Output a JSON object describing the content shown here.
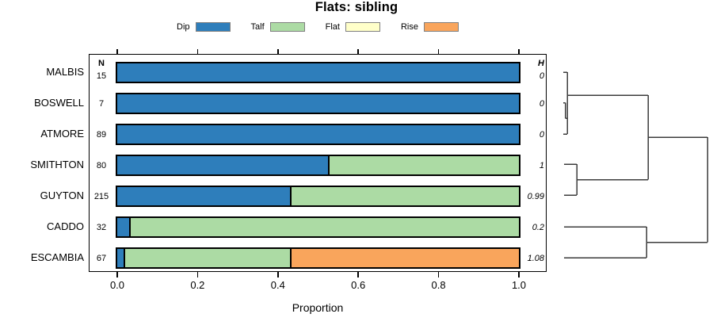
{
  "chart_data": {
    "type": "bar",
    "orientation": "horizontal-stacked",
    "title": "Flats: sibling",
    "xlabel": "Proportion",
    "xlim": [
      0,
      1
    ],
    "xticks": [
      0,
      0.2,
      0.4,
      0.6,
      0.8,
      1
    ],
    "xtick_labels": [
      "0.0",
      "0.2",
      "0.4",
      "0.6",
      "0.8",
      "1.0"
    ],
    "n_column_header": "N",
    "h_column_header": "H",
    "legend": [
      {
        "label": "Dip",
        "color": "#2E7EBB"
      },
      {
        "label": "Talf",
        "color": "#ACDBA4"
      },
      {
        "label": "Flat",
        "color": "#FFFFC9"
      },
      {
        "label": "Rise",
        "color": "#F9A55C"
      }
    ],
    "rows": [
      {
        "category": "MALBIS",
        "n": "15",
        "h": "0",
        "segments": [
          1,
          0,
          0,
          0
        ]
      },
      {
        "category": "BOSWELL",
        "n": "7",
        "h": "0",
        "segments": [
          1,
          0,
          0,
          0
        ]
      },
      {
        "category": "ATMORE",
        "n": "89",
        "h": "0",
        "segments": [
          1,
          0,
          0,
          0
        ]
      },
      {
        "category": "SMITHTON",
        "n": "80",
        "h": "1",
        "segments": [
          0.525,
          0.475,
          0,
          0
        ]
      },
      {
        "category": "GUYTON",
        "n": "215",
        "h": "0.99",
        "segments": [
          0.43,
          0.57,
          0,
          0
        ]
      },
      {
        "category": "CADDO",
        "n": "32",
        "h": "0.2",
        "segments": [
          0.03,
          0.97,
          0,
          0
        ]
      },
      {
        "category": "ESCAMBIA",
        "n": "67",
        "h": "1.08",
        "segments": [
          0.015,
          0.415,
          0,
          0.57
        ]
      }
    ],
    "dendrogram": {
      "legend_note": "hierarchical clustering of rows, drawn to the right of the plot",
      "segments": [
        [
          711,
          91,
          716,
          91
        ],
        [
          711,
          129.5,
          713.5,
          129.5
        ],
        [
          713.5,
          129.5,
          713.5,
          149
        ],
        [
          713.5,
          149,
          716,
          149
        ],
        [
          711,
          169,
          716,
          169
        ],
        [
          716,
          91,
          716,
          169
        ],
        [
          716,
          120,
          818,
          120
        ],
        [
          712,
          207,
          728,
          207
        ],
        [
          712,
          246,
          728,
          246
        ],
        [
          728,
          207,
          728,
          246
        ],
        [
          728,
          226.5,
          818,
          226.5
        ],
        [
          818,
          120,
          818,
          226.5
        ],
        [
          818,
          173,
          893,
          173
        ],
        [
          712,
          286,
          816,
          286
        ],
        [
          712,
          325,
          816,
          325
        ],
        [
          816,
          286,
          816,
          325
        ],
        [
          816,
          305.5,
          893,
          305.5
        ],
        [
          893,
          173,
          893,
          305.5
        ]
      ]
    },
    "colors": {
      "bar_border": "#000000",
      "legend_swatch_border": "#808080",
      "dendrogram_line": "#3C3C3C",
      "axis_line": "#000000"
    }
  }
}
